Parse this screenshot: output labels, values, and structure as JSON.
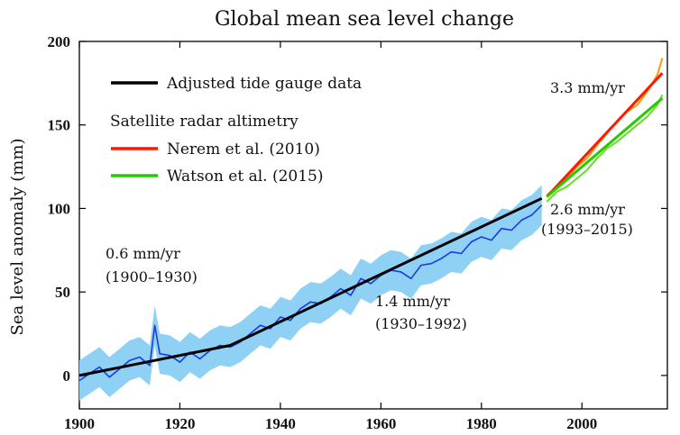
{
  "chart_data": {
    "type": "line",
    "title": "Global mean sea level change",
    "xlabel": "",
    "ylabel": "Sea level anomaly (mm)",
    "xlim": [
      1900,
      2017
    ],
    "ylim": [
      -20,
      200
    ],
    "xticks": [
      1900,
      1920,
      1940,
      1960,
      1980,
      2000
    ],
    "yticks": [
      0,
      50,
      100,
      150,
      200
    ],
    "grid": false,
    "legend_position": "top-left",
    "legend": {
      "items": [
        {
          "label": "Adjusted tide gauge data",
          "color": "#000000"
        },
        {
          "label": "Nerem et al. (2010)",
          "color": "#ff1a00"
        },
        {
          "label": "Watson et al. (2015)",
          "color": "#22cc00"
        }
      ],
      "group_heading": "Satellite radar altimetry"
    },
    "series": [
      {
        "kind": "tide-gauge-trend",
        "color": "#000000",
        "x": [
          1900,
          1930,
          1992
        ],
        "y": [
          0,
          18,
          106
        ]
      },
      {
        "kind": "tide-gauge-observed",
        "color": "#1a3be0",
        "band_color": "#8fd1f5",
        "x": [
          1900,
          1902,
          1904,
          1906,
          1908,
          1910,
          1912,
          1914,
          1915,
          1916,
          1918,
          1920,
          1922,
          1924,
          1926,
          1928,
          1930,
          1932,
          1934,
          1936,
          1938,
          1940,
          1942,
          1944,
          1946,
          1948,
          1950,
          1952,
          1954,
          1956,
          1958,
          1960,
          1962,
          1964,
          1966,
          1968,
          1970,
          1972,
          1974,
          1976,
          1978,
          1980,
          1982,
          1984,
          1986,
          1988,
          1990,
          1992
        ],
        "y": [
          -3,
          1,
          5,
          -1,
          4,
          9,
          11,
          6,
          30,
          13,
          12,
          8,
          14,
          10,
          15,
          18,
          17,
          20,
          25,
          30,
          28,
          35,
          33,
          40,
          44,
          43,
          47,
          52,
          48,
          58,
          55,
          60,
          63,
          62,
          58,
          66,
          67,
          70,
          74,
          73,
          80,
          83,
          81,
          88,
          87,
          93,
          96,
          102
        ],
        "band_halfwidth": 12
      },
      {
        "kind": "nerem-observed",
        "color": "#ff9900",
        "x": [
          1993,
          1995,
          1997,
          1999,
          2001,
          2003,
          2005,
          2007,
          2009,
          2011,
          2013,
          2015,
          2016
        ],
        "y": [
          108,
          113,
          118,
          125,
          130,
          138,
          145,
          152,
          158,
          162,
          170,
          180,
          190
        ]
      },
      {
        "kind": "watson-observed",
        "color": "#66dd22",
        "x": [
          1993,
          1995,
          1997,
          1999,
          2001,
          2003,
          2005,
          2007,
          2009,
          2011,
          2013,
          2015,
          2016
        ],
        "y": [
          104,
          110,
          113,
          118,
          123,
          130,
          136,
          140,
          145,
          150,
          155,
          162,
          168
        ]
      },
      {
        "kind": "nerem-trend",
        "color": "#ff1a00",
        "x": [
          1993,
          2016
        ],
        "y": [
          107,
          181
        ]
      },
      {
        "kind": "watson-trend",
        "color": "#22cc00",
        "x": [
          1993,
          2016
        ],
        "y": [
          107,
          166
        ]
      }
    ],
    "annotations": [
      {
        "id": "rate_1900",
        "lines": [
          "0.6 mm/yr",
          "(1900–1930)"
        ]
      },
      {
        "id": "rate_1930",
        "lines": [
          "1.4 mm/yr",
          "(1930–1992)"
        ]
      },
      {
        "id": "rate_nerem",
        "lines": [
          "3.3 mm/yr"
        ]
      },
      {
        "id": "rate_watson",
        "lines": [
          "2.6 mm/yr",
          "(1993–2015)"
        ]
      }
    ]
  }
}
